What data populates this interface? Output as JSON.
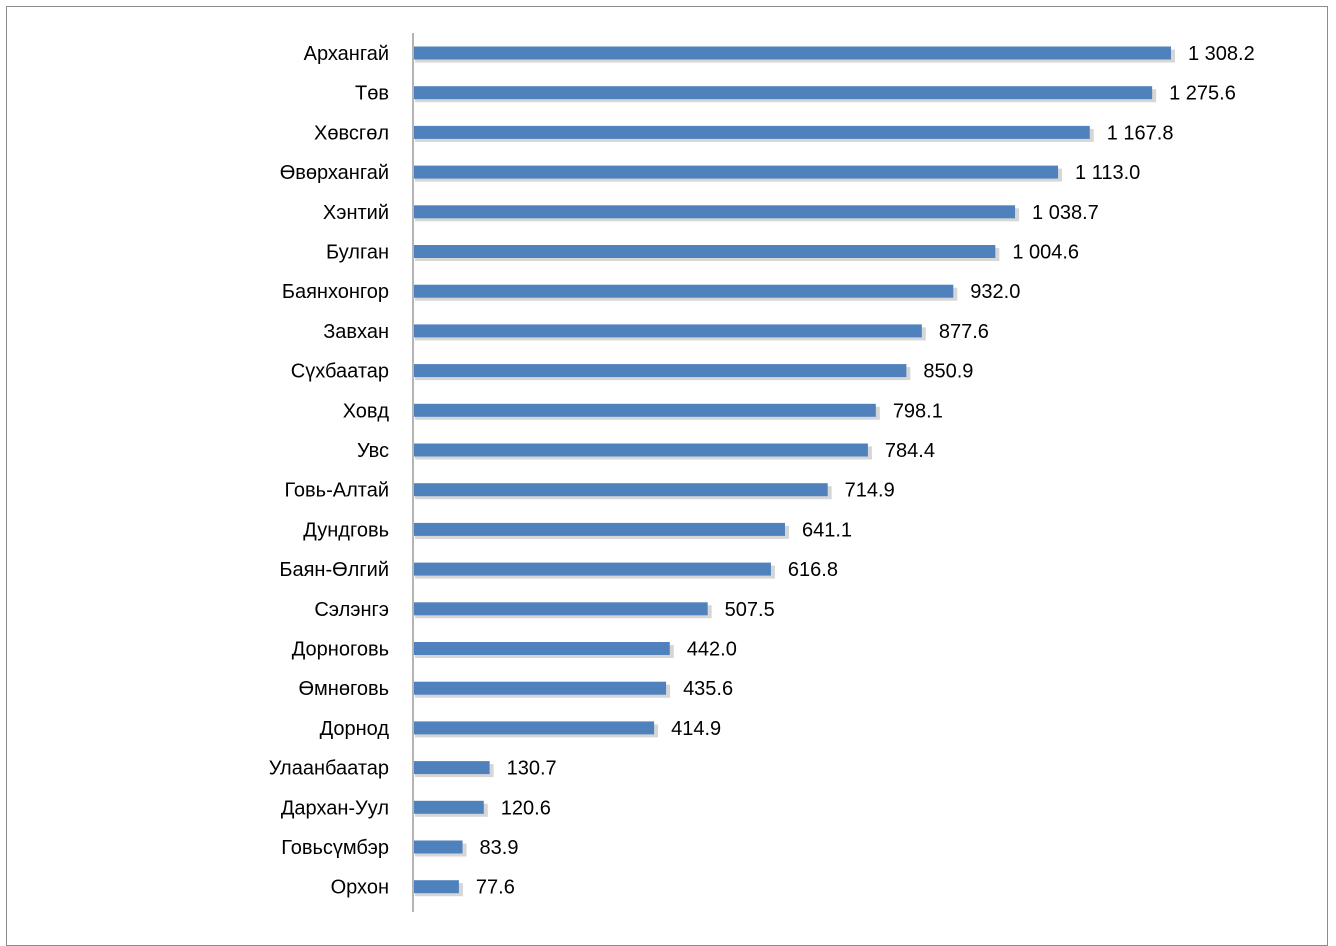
{
  "chart_data": {
    "type": "bar",
    "orientation": "horizontal",
    "categories": [
      "Архангай",
      "Төв",
      "Хөвсгөл",
      "Өвөрхангай",
      "Хэнтий",
      "Булган",
      "Баянхонгор",
      "Завхан",
      "Сүхбаатар",
      "Ховд",
      "Увс",
      "Говь-Алтай",
      "Дундговь",
      "Баян-Өлгий",
      "Сэлэнгэ",
      "Дорноговь",
      "Өмнөговь",
      "Дорнод",
      "Улаанбаатар",
      "Дархан-Уул",
      "Говьсүмбэр",
      "Орхон"
    ],
    "values": [
      1308.2,
      1275.6,
      1167.8,
      1113.0,
      1038.7,
      1004.6,
      932.0,
      877.6,
      850.9,
      798.1,
      784.4,
      714.9,
      641.1,
      616.8,
      507.5,
      442.0,
      435.6,
      414.9,
      130.7,
      120.6,
      83.9,
      77.6
    ],
    "value_labels": [
      "1 308.2",
      "1 275.6",
      "1 167.8",
      "1 113.0",
      "1 038.7",
      "1 004.6",
      "932.0",
      "877.6",
      "850.9",
      "798.1",
      "784.4",
      "714.9",
      "641.1",
      "616.8",
      "507.5",
      "442.0",
      "435.6",
      "414.9",
      "130.7",
      "120.6",
      "83.9",
      "77.6"
    ],
    "xlim": [
      0,
      1308.2
    ],
    "grid": false,
    "bar_color": "#4f81bd",
    "bar_shadow_color": "#b4b4b4"
  }
}
